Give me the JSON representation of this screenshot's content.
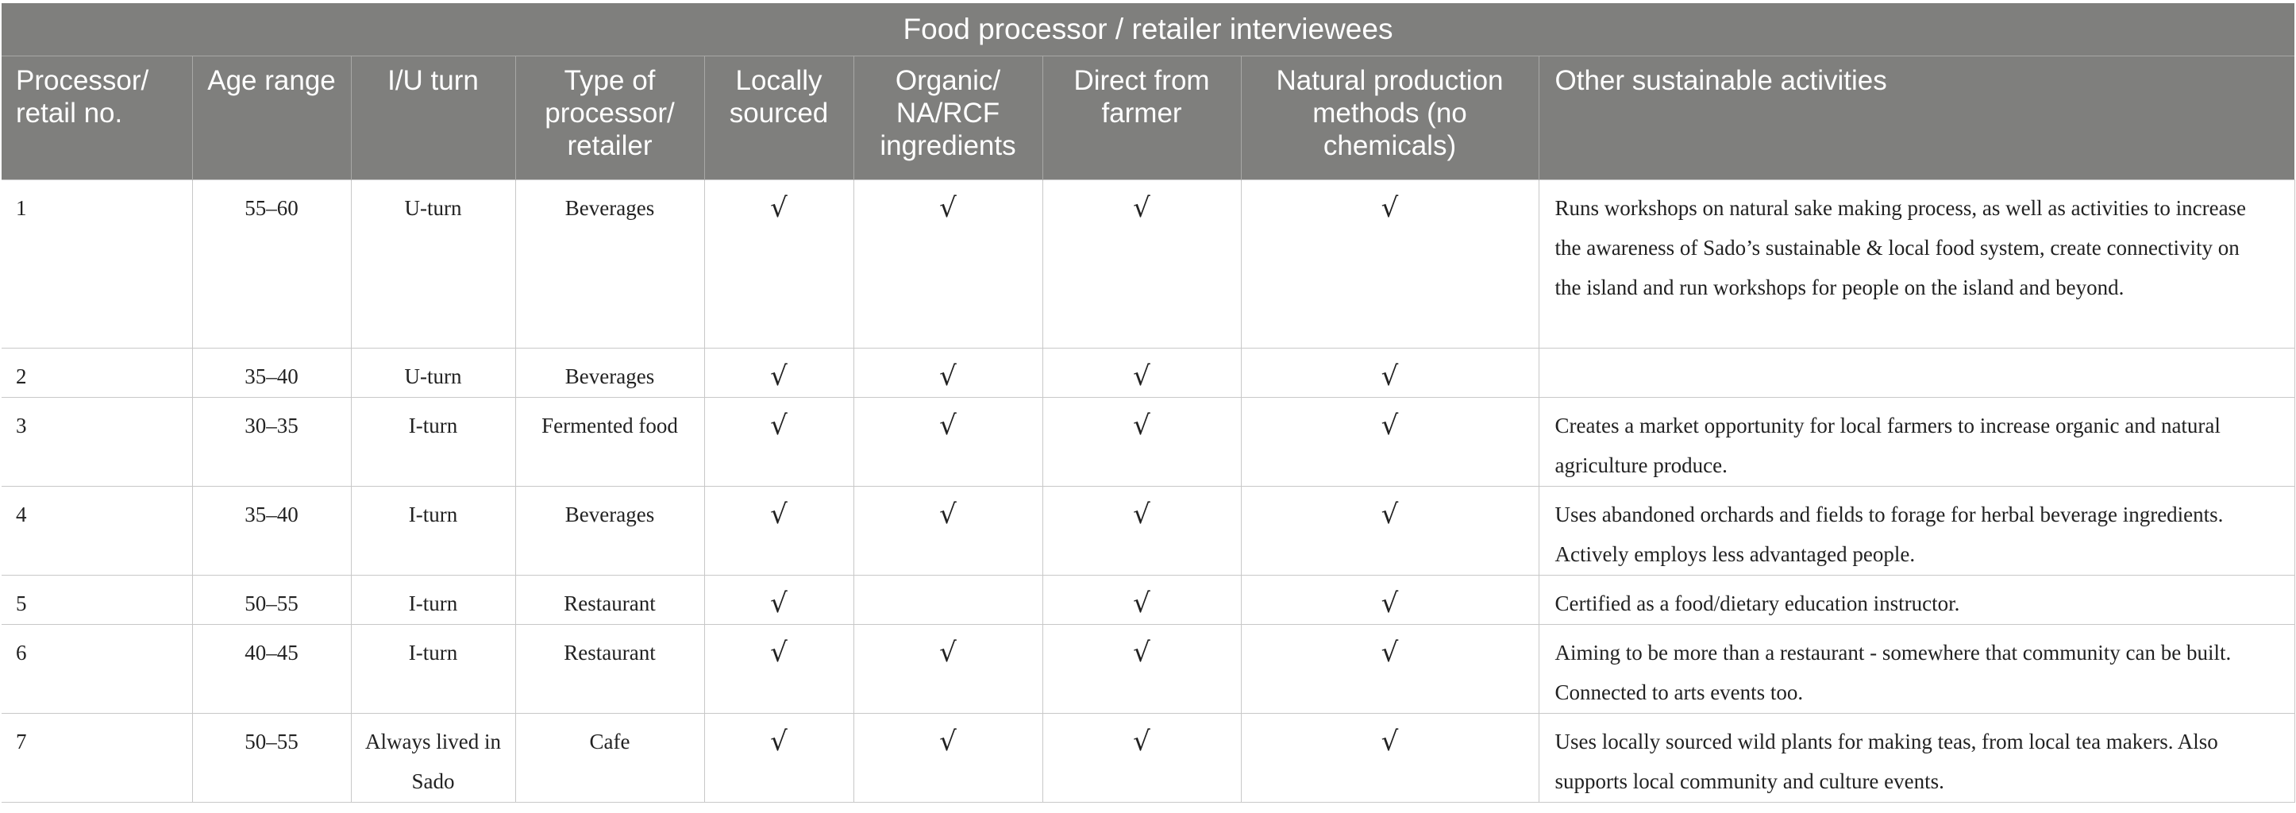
{
  "table": {
    "caption": "Food processor / retailer interviewees",
    "headers": [
      "Processor/ retail no.",
      "Age range",
      "I/U turn",
      "Type of processor/ retailer",
      "Locally sourced",
      "Organic/ NA/RCF ingredients",
      "Direct from farmer",
      "Natural production methods (no chemicals)",
      "Other sustainable activities"
    ],
    "rows": [
      {
        "no": "1",
        "age": "55–60",
        "turn": "U-turn",
        "type": "Beverages",
        "local": "√",
        "organic": "√",
        "direct": "√",
        "natural": "√",
        "other": "Runs workshops on natural sake making process, as well as activities to increase the awareness of Sado’s sustainable & local food system, create connectivity on the island and run workshops for people on the island and beyond."
      },
      {
        "no": "2",
        "age": "35–40",
        "turn": "U-turn",
        "type": "Beverages",
        "local": "√",
        "organic": "√",
        "direct": "√",
        "natural": "√",
        "other": ""
      },
      {
        "no": "3",
        "age": "30–35",
        "turn": "I-turn",
        "type": "Fermented food",
        "local": "√",
        "organic": "√",
        "direct": "√",
        "natural": "√",
        "other": "Creates a market opportunity for local farmers to increase organic and natural agriculture produce."
      },
      {
        "no": "4",
        "age": "35–40",
        "turn": "I-turn",
        "type": "Beverages",
        "local": "√",
        "organic": "√",
        "direct": "√",
        "natural": "√",
        "other": "Uses abandoned orchards and fields to forage for herbal beverage ingredients. Actively employs less advantaged people."
      },
      {
        "no": "5",
        "age": "50–55",
        "turn": "I-turn",
        "type": "Restaurant",
        "local": "√",
        "organic": "",
        "direct": "√",
        "natural": "√",
        "other": "Certified as a food/dietary education instructor."
      },
      {
        "no": "6",
        "age": "40–45",
        "turn": "I-turn",
        "type": "Restaurant",
        "local": "√",
        "organic": "√",
        "direct": "√",
        "natural": "√",
        "other": "Aiming to be more than a restaurant - somewhere that community can be built. Connected to arts events too."
      },
      {
        "no": "7",
        "age": "50–55",
        "turn": "Always lived in Sado",
        "type": "Cafe",
        "local": "√",
        "organic": "√",
        "direct": "√",
        "natural": "√",
        "other": "Uses locally sourced wild plants for making teas, from local tea makers. Also supports local community and culture events."
      }
    ]
  }
}
